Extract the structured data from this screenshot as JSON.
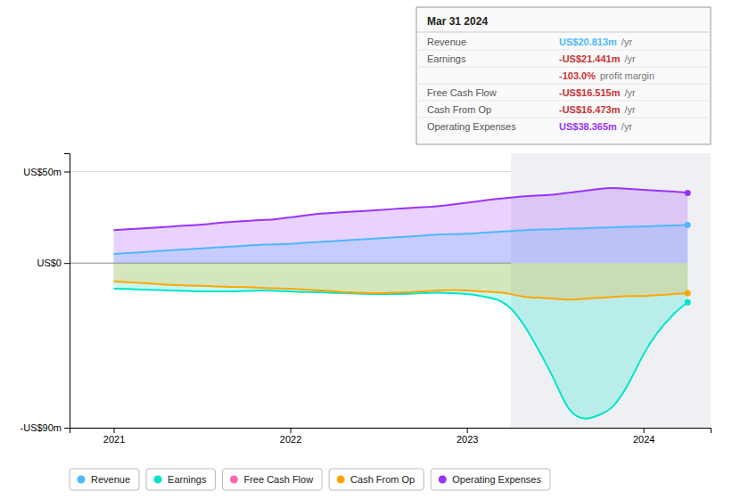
{
  "chart_data": {
    "type": "area",
    "x": [
      2021.0,
      2021.08,
      2021.17,
      2021.25,
      2021.33,
      2021.42,
      2021.5,
      2021.58,
      2021.67,
      2021.75,
      2021.83,
      2021.92,
      2022.0,
      2022.08,
      2022.17,
      2022.25,
      2022.33,
      2022.42,
      2022.5,
      2022.58,
      2022.67,
      2022.75,
      2022.83,
      2022.92,
      2023.0,
      2023.08,
      2023.17,
      2023.25,
      2023.33,
      2023.42,
      2023.5,
      2023.58,
      2023.67,
      2023.75,
      2023.83,
      2023.92,
      2024.0,
      2024.08,
      2024.17,
      2024.25
    ],
    "series": [
      {
        "name": "Revenue",
        "color": "#4db8ff",
        "values": [
          5.0,
          5.5,
          6.0,
          6.5,
          7.0,
          7.5,
          8.0,
          8.5,
          9.0,
          9.5,
          10.0,
          10.2,
          10.5,
          11.0,
          11.5,
          12.0,
          12.5,
          13.0,
          13.5,
          14.0,
          14.5,
          15.0,
          15.5,
          15.8,
          16.0,
          16.5,
          17.0,
          17.5,
          18.0,
          18.3,
          18.5,
          18.8,
          19.0,
          19.3,
          19.5,
          19.8,
          20.0,
          20.3,
          20.6,
          20.813
        ]
      },
      {
        "name": "Earnings",
        "color": "#00e5c8",
        "values": [
          -14.0,
          -14.2,
          -14.5,
          -14.8,
          -15.0,
          -15.3,
          -15.5,
          -15.5,
          -15.5,
          -15.3,
          -15.0,
          -15.2,
          -15.5,
          -15.8,
          -16.0,
          -16.3,
          -16.5,
          -16.8,
          -17.0,
          -17.0,
          -16.8,
          -16.5,
          -16.2,
          -16.5,
          -17.0,
          -18.0,
          -20.0,
          -25.0,
          -35.0,
          -50.0,
          -65.0,
          -80.0,
          -85.0,
          -83.0,
          -78.0,
          -65.0,
          -50.0,
          -38.0,
          -28.0,
          -21.441
        ]
      },
      {
        "name": "Free Cash Flow",
        "color": "#ff69b4",
        "values": [
          null,
          null,
          null,
          null,
          null,
          null,
          null,
          null,
          null,
          null,
          null,
          null,
          null,
          null,
          null,
          null,
          null,
          null,
          null,
          null,
          null,
          null,
          null,
          null,
          null,
          null,
          null,
          null,
          null,
          null,
          null,
          null,
          null,
          null,
          null,
          null,
          null,
          null,
          null,
          null
        ]
      },
      {
        "name": "Cash From Op",
        "color": "#ffa500",
        "values": [
          -10.0,
          -10.5,
          -11.0,
          -11.5,
          -12.0,
          -12.3,
          -12.5,
          -12.8,
          -13.0,
          -13.2,
          -13.5,
          -13.8,
          -14.0,
          -14.5,
          -15.0,
          -15.5,
          -16.0,
          -16.3,
          -16.5,
          -16.2,
          -16.0,
          -15.5,
          -15.0,
          -14.8,
          -15.0,
          -15.5,
          -16.0,
          -17.0,
          -18.5,
          -19.0,
          -19.5,
          -20.0,
          -19.5,
          -19.0,
          -18.5,
          -18.0,
          -18.0,
          -17.5,
          -17.0,
          -16.473
        ]
      },
      {
        "name": "Operating Expenses",
        "color": "#9933ff",
        "values": [
          18.0,
          18.5,
          19.0,
          19.5,
          20.0,
          20.5,
          21.0,
          21.8,
          22.5,
          23.0,
          23.5,
          24.0,
          25.0,
          26.0,
          27.0,
          27.5,
          28.0,
          28.5,
          29.0,
          29.5,
          30.0,
          30.5,
          31.0,
          32.0,
          33.0,
          34.0,
          35.0,
          35.8,
          36.5,
          37.0,
          37.5,
          38.5,
          39.5,
          40.5,
          41.0,
          40.5,
          40.0,
          39.5,
          39.0,
          38.365
        ]
      }
    ],
    "xlim": [
      2020.75,
      2024.38
    ],
    "xticks": [
      2021,
      2022,
      2023,
      2024
    ],
    "ylim": [
      -90,
      60
    ],
    "yticks": [
      {
        "value": 50,
        "label": "US$50m"
      },
      {
        "value": 0,
        "label": "US$0"
      },
      {
        "value": -90,
        "label": "-US$90m"
      }
    ],
    "grid": true,
    "highlight_start": 2023.25,
    "annotations": [
      {
        "title": "Mar 31 2024",
        "rows": [
          {
            "label": "Revenue",
            "text": "US$20.813m",
            "color": "#4db8ff",
            "suffix": "/yr"
          },
          {
            "label": "Earnings",
            "text": "-US$21.441m",
            "color": "#cc3333",
            "suffix": "/yr"
          },
          {
            "text": "-103.0%",
            "color": "#cc3333",
            "suffix": "profit margin"
          },
          {
            "label": "Free Cash Flow",
            "text": "-US$16.515m",
            "color": "#cc3333",
            "suffix": "/yr"
          },
          {
            "label": "Cash From Op",
            "text": "-US$16.473m",
            "color": "#cc3333",
            "suffix": "/yr"
          },
          {
            "label": "Operating Expenses",
            "text": "US$38.365m",
            "color": "#9933ff",
            "suffix": "/yr"
          }
        ]
      }
    ]
  }
}
